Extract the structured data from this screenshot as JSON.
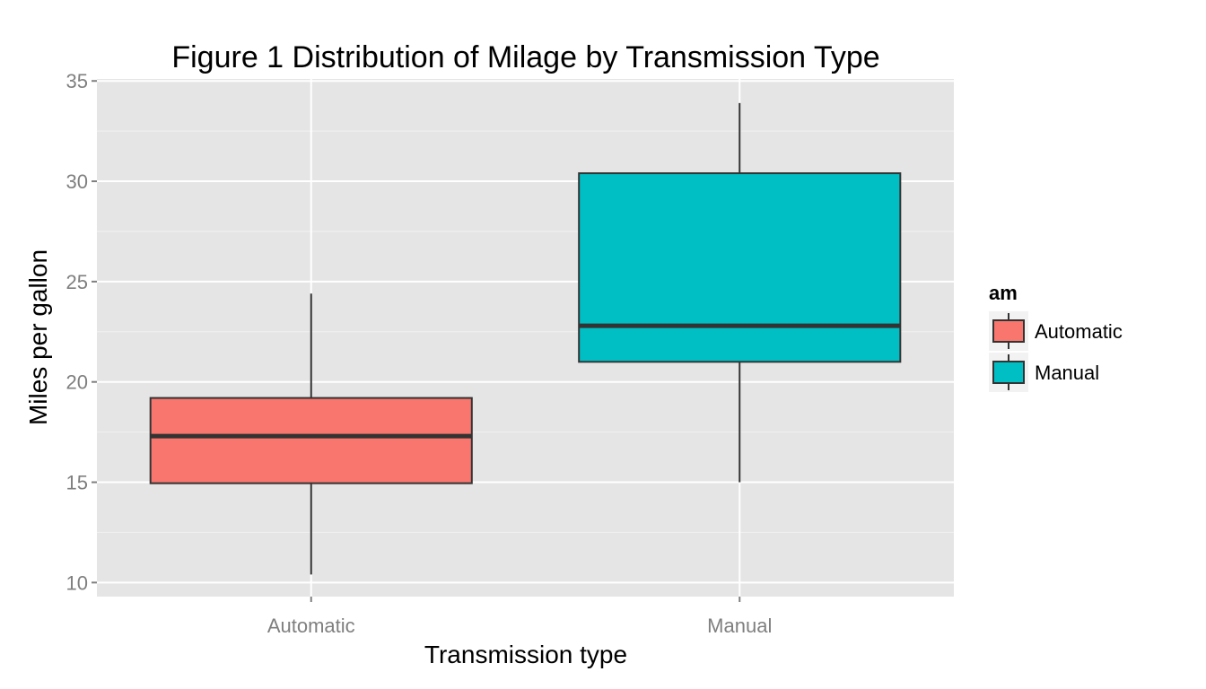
{
  "chart_data": {
    "type": "boxplot",
    "title": "Figure 1  Distribution of Milage by Transmission Type",
    "xlabel": "Transmission type",
    "ylabel": "Miles per gallon",
    "categories": [
      "Automatic",
      "Manual"
    ],
    "ylim": [
      9.3,
      35.1
    ],
    "yticks": [
      10,
      15,
      20,
      25,
      30,
      35
    ],
    "grid": true,
    "boxes": [
      {
        "category": "Automatic",
        "min": 10.4,
        "q1": 14.95,
        "median": 17.3,
        "q3": 19.2,
        "max": 24.4,
        "color": "#F8766D"
      },
      {
        "category": "Manual",
        "min": 15.0,
        "q1": 21.0,
        "median": 22.8,
        "q3": 30.4,
        "max": 33.9,
        "color": "#00BFC4"
      }
    ],
    "legend": {
      "title": "am",
      "position": "right",
      "entries": [
        {
          "label": "Automatic",
          "color": "#F8766D"
        },
        {
          "label": "Manual",
          "color": "#00BFC4"
        }
      ]
    },
    "colors": {
      "panel_bg": "#E5E5E5",
      "grid_major": "#FFFFFF",
      "grid_minor": "#F2F2F2",
      "box_outline": "#333333",
      "tick_text": "#7F7F7F"
    }
  }
}
